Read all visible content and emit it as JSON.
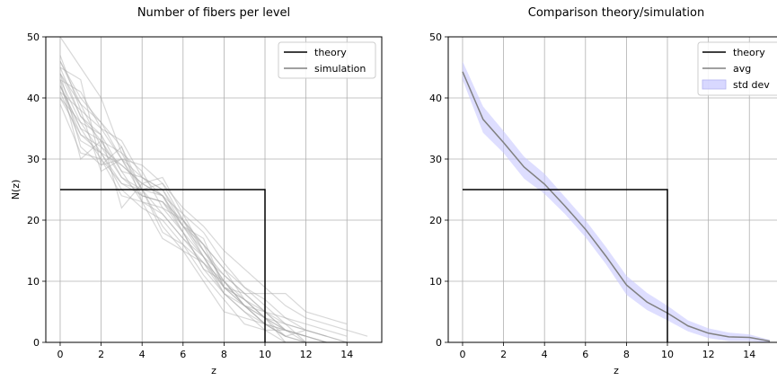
{
  "chart_data": [
    {
      "type": "line",
      "title": "Number of fibers per level",
      "xlabel": "z",
      "ylabel": "N(z)",
      "xlim": [
        -0.7,
        15.7
      ],
      "ylim": [
        0,
        50
      ],
      "xticks": [
        0,
        2,
        4,
        6,
        8,
        10,
        12,
        14
      ],
      "yticks": [
        0,
        10,
        20,
        30,
        40,
        50
      ],
      "grid": true,
      "legend_position": "top-right",
      "legend": [
        {
          "label": "theory",
          "color": "#000000"
        },
        {
          "label": "simulation",
          "color": "#808080"
        }
      ],
      "theory": {
        "x": [
          0,
          10,
          10
        ],
        "y": [
          25,
          25,
          0
        ]
      },
      "simulation_runs": [
        {
          "x": [
            0,
            1,
            2,
            3,
            4,
            5,
            6,
            7,
            8,
            9,
            10,
            11
          ],
          "y": [
            50,
            45,
            40,
            31,
            25,
            24,
            18,
            12,
            8,
            5,
            2,
            0
          ]
        },
        {
          "x": [
            0,
            1,
            2,
            3,
            4,
            5,
            6,
            7,
            8,
            9,
            10,
            11
          ],
          "y": [
            47,
            38,
            35,
            30,
            27,
            25,
            20,
            14,
            9,
            6,
            3,
            1
          ]
        },
        {
          "x": [
            0,
            1,
            2,
            3,
            4,
            5,
            6,
            7,
            8,
            9,
            10,
            11,
            12
          ],
          "y": [
            46,
            40,
            36,
            32,
            25,
            26,
            20,
            16,
            9,
            6,
            3,
            2,
            1
          ]
        },
        {
          "x": [
            0,
            1,
            2,
            3,
            4,
            5,
            6,
            7,
            8,
            9,
            10,
            11
          ],
          "y": [
            45,
            43,
            29,
            30,
            24,
            23,
            19,
            15,
            10,
            7,
            4,
            0
          ]
        },
        {
          "x": [
            0,
            1,
            2,
            3,
            4,
            5,
            6,
            7,
            8,
            9,
            10,
            11,
            12
          ],
          "y": [
            44,
            37,
            33,
            28,
            23,
            22,
            18,
            14,
            9,
            7,
            4,
            2,
            0
          ]
        },
        {
          "x": [
            0,
            1,
            2,
            3,
            4,
            5,
            6,
            7,
            8,
            9,
            10,
            11
          ],
          "y": [
            43,
            36,
            31,
            29,
            26,
            24,
            21,
            15,
            11,
            8,
            5,
            2
          ]
        },
        {
          "x": [
            0,
            1,
            2,
            3,
            4,
            5,
            6,
            7,
            8,
            9,
            10,
            11,
            12,
            13
          ],
          "y": [
            42,
            34,
            32,
            27,
            25,
            21,
            17,
            13,
            8,
            5,
            3,
            2,
            1,
            0
          ]
        },
        {
          "x": [
            0,
            1,
            2,
            3,
            4,
            5,
            6,
            7,
            8,
            9,
            10,
            11,
            12
          ],
          "y": [
            42,
            35,
            30,
            26,
            24,
            23,
            18,
            12,
            10,
            6,
            4,
            1,
            0
          ]
        },
        {
          "x": [
            0,
            1,
            2,
            3,
            4,
            5,
            6,
            7,
            8,
            9,
            10,
            11,
            12,
            13,
            14
          ],
          "y": [
            41,
            33,
            31,
            25,
            22,
            20,
            16,
            13,
            9,
            7,
            5,
            3,
            2,
            1,
            0
          ]
        },
        {
          "x": [
            0,
            1,
            2,
            3,
            4,
            5,
            6,
            7,
            8,
            9,
            10,
            11,
            12
          ],
          "y": [
            40,
            36,
            34,
            28,
            27,
            25,
            19,
            16,
            12,
            7,
            4,
            2,
            1
          ]
        },
        {
          "x": [
            0,
            1,
            2,
            3,
            4,
            5,
            6,
            7,
            8,
            9,
            10,
            11,
            12,
            13,
            14
          ],
          "y": [
            39,
            31,
            30,
            24,
            23,
            17,
            15,
            10,
            5,
            4,
            3,
            1,
            2,
            1,
            0
          ]
        },
        {
          "x": [
            0,
            1,
            2,
            3,
            4,
            5,
            6,
            7,
            8,
            9,
            10,
            11,
            12
          ],
          "y": [
            44,
            39,
            32,
            29,
            26,
            24,
            19,
            14,
            8,
            6,
            3,
            1,
            0
          ]
        },
        {
          "x": [
            0,
            1,
            2,
            3,
            4,
            5,
            6,
            7,
            8,
            9,
            10,
            11,
            12,
            13
          ],
          "y": [
            43,
            30,
            33,
            31,
            28,
            22,
            20,
            15,
            10,
            6,
            5,
            2,
            1,
            0
          ]
        },
        {
          "x": [
            0,
            1,
            2,
            3,
            4,
            5,
            6,
            7,
            8,
            9,
            10,
            11,
            12
          ],
          "y": [
            45,
            37,
            34,
            22,
            26,
            27,
            21,
            18,
            13,
            9,
            6,
            3,
            0
          ]
        },
        {
          "x": [
            0,
            1,
            2,
            3,
            4,
            5,
            6,
            7,
            8,
            9,
            10,
            11,
            12,
            13,
            14
          ],
          "y": [
            41,
            38,
            28,
            30,
            25,
            18,
            16,
            11,
            7,
            3,
            2,
            2,
            1,
            0,
            0
          ]
        },
        {
          "x": [
            0,
            1,
            2,
            3,
            4,
            5,
            6,
            7,
            8,
            9,
            10,
            11,
            12,
            13,
            14
          ],
          "y": [
            42,
            35,
            33,
            27,
            24,
            23,
            20,
            16,
            12,
            9,
            7,
            4,
            3,
            2,
            1
          ]
        },
        {
          "x": [
            0,
            1,
            2,
            3,
            4,
            5,
            6,
            7,
            8,
            9,
            10,
            11,
            12,
            13,
            14,
            15
          ],
          "y": [
            46,
            39,
            36,
            30,
            29,
            26,
            22,
            19,
            15,
            12,
            9,
            6,
            4,
            3,
            2,
            1
          ]
        },
        {
          "x": [
            0,
            1,
            2,
            3,
            4,
            5,
            6,
            7,
            8,
            9,
            10,
            11,
            12,
            13,
            14
          ],
          "y": [
            44,
            32,
            29,
            32,
            23,
            21,
            17,
            14,
            11,
            8,
            8,
            8,
            5,
            4,
            3
          ]
        },
        {
          "x": [
            0,
            1,
            2,
            3,
            4,
            5,
            6,
            7,
            8,
            9,
            10,
            11,
            12,
            13
          ],
          "y": [
            40,
            34,
            31,
            26,
            25,
            19,
            15,
            13,
            10,
            6,
            4,
            3,
            2,
            1
          ]
        },
        {
          "x": [
            0,
            1,
            2,
            3,
            4,
            5,
            6,
            7,
            8,
            9,
            10,
            11,
            12
          ],
          "y": [
            43,
            41,
            35,
            33,
            27,
            24,
            19,
            17,
            9,
            8,
            5,
            4,
            2
          ]
        }
      ]
    },
    {
      "type": "line",
      "title": "Comparison theory/simulation",
      "xlabel": "z",
      "ylabel": "",
      "xlim": [
        -0.7,
        15.7
      ],
      "ylim": [
        0,
        50
      ],
      "xticks": [
        0,
        2,
        4,
        6,
        8,
        10,
        12,
        14
      ],
      "yticks": [
        0,
        10,
        20,
        30,
        40,
        50
      ],
      "grid": true,
      "legend_position": "top-right",
      "legend": [
        {
          "label": "theory",
          "color": "#000000"
        },
        {
          "label": "avg",
          "color": "#808080"
        },
        {
          "label": "std dev",
          "color": "#c8c8ff"
        }
      ],
      "theory": {
        "x": [
          0,
          10,
          10
        ],
        "y": [
          25,
          25,
          0
        ]
      },
      "avg": {
        "x": [
          0,
          1,
          2,
          3,
          4,
          5,
          6,
          7,
          8,
          9,
          10,
          11,
          12,
          13,
          14,
          15
        ],
        "y": [
          44.3,
          36.5,
          32.7,
          28.7,
          25.9,
          22.3,
          18.5,
          14.1,
          9.4,
          6.6,
          4.8,
          2.7,
          1.5,
          0.9,
          0.8,
          0.2
        ]
      },
      "std_dev": {
        "x": [
          0,
          1,
          2,
          3,
          4,
          5,
          6,
          7,
          8,
          9,
          10,
          11,
          12,
          13,
          14,
          15
        ],
        "lower": [
          43.0,
          34.3,
          31.0,
          26.8,
          24.3,
          21.0,
          17.2,
          12.8,
          7.8,
          5.3,
          3.6,
          1.8,
          0.7,
          0.2,
          0.2,
          0.0
        ],
        "upper": [
          46.0,
          38.6,
          34.6,
          30.4,
          27.6,
          23.8,
          20.0,
          15.6,
          10.9,
          8.1,
          6.0,
          3.6,
          2.3,
          1.6,
          1.3,
          0.4
        ]
      }
    }
  ]
}
